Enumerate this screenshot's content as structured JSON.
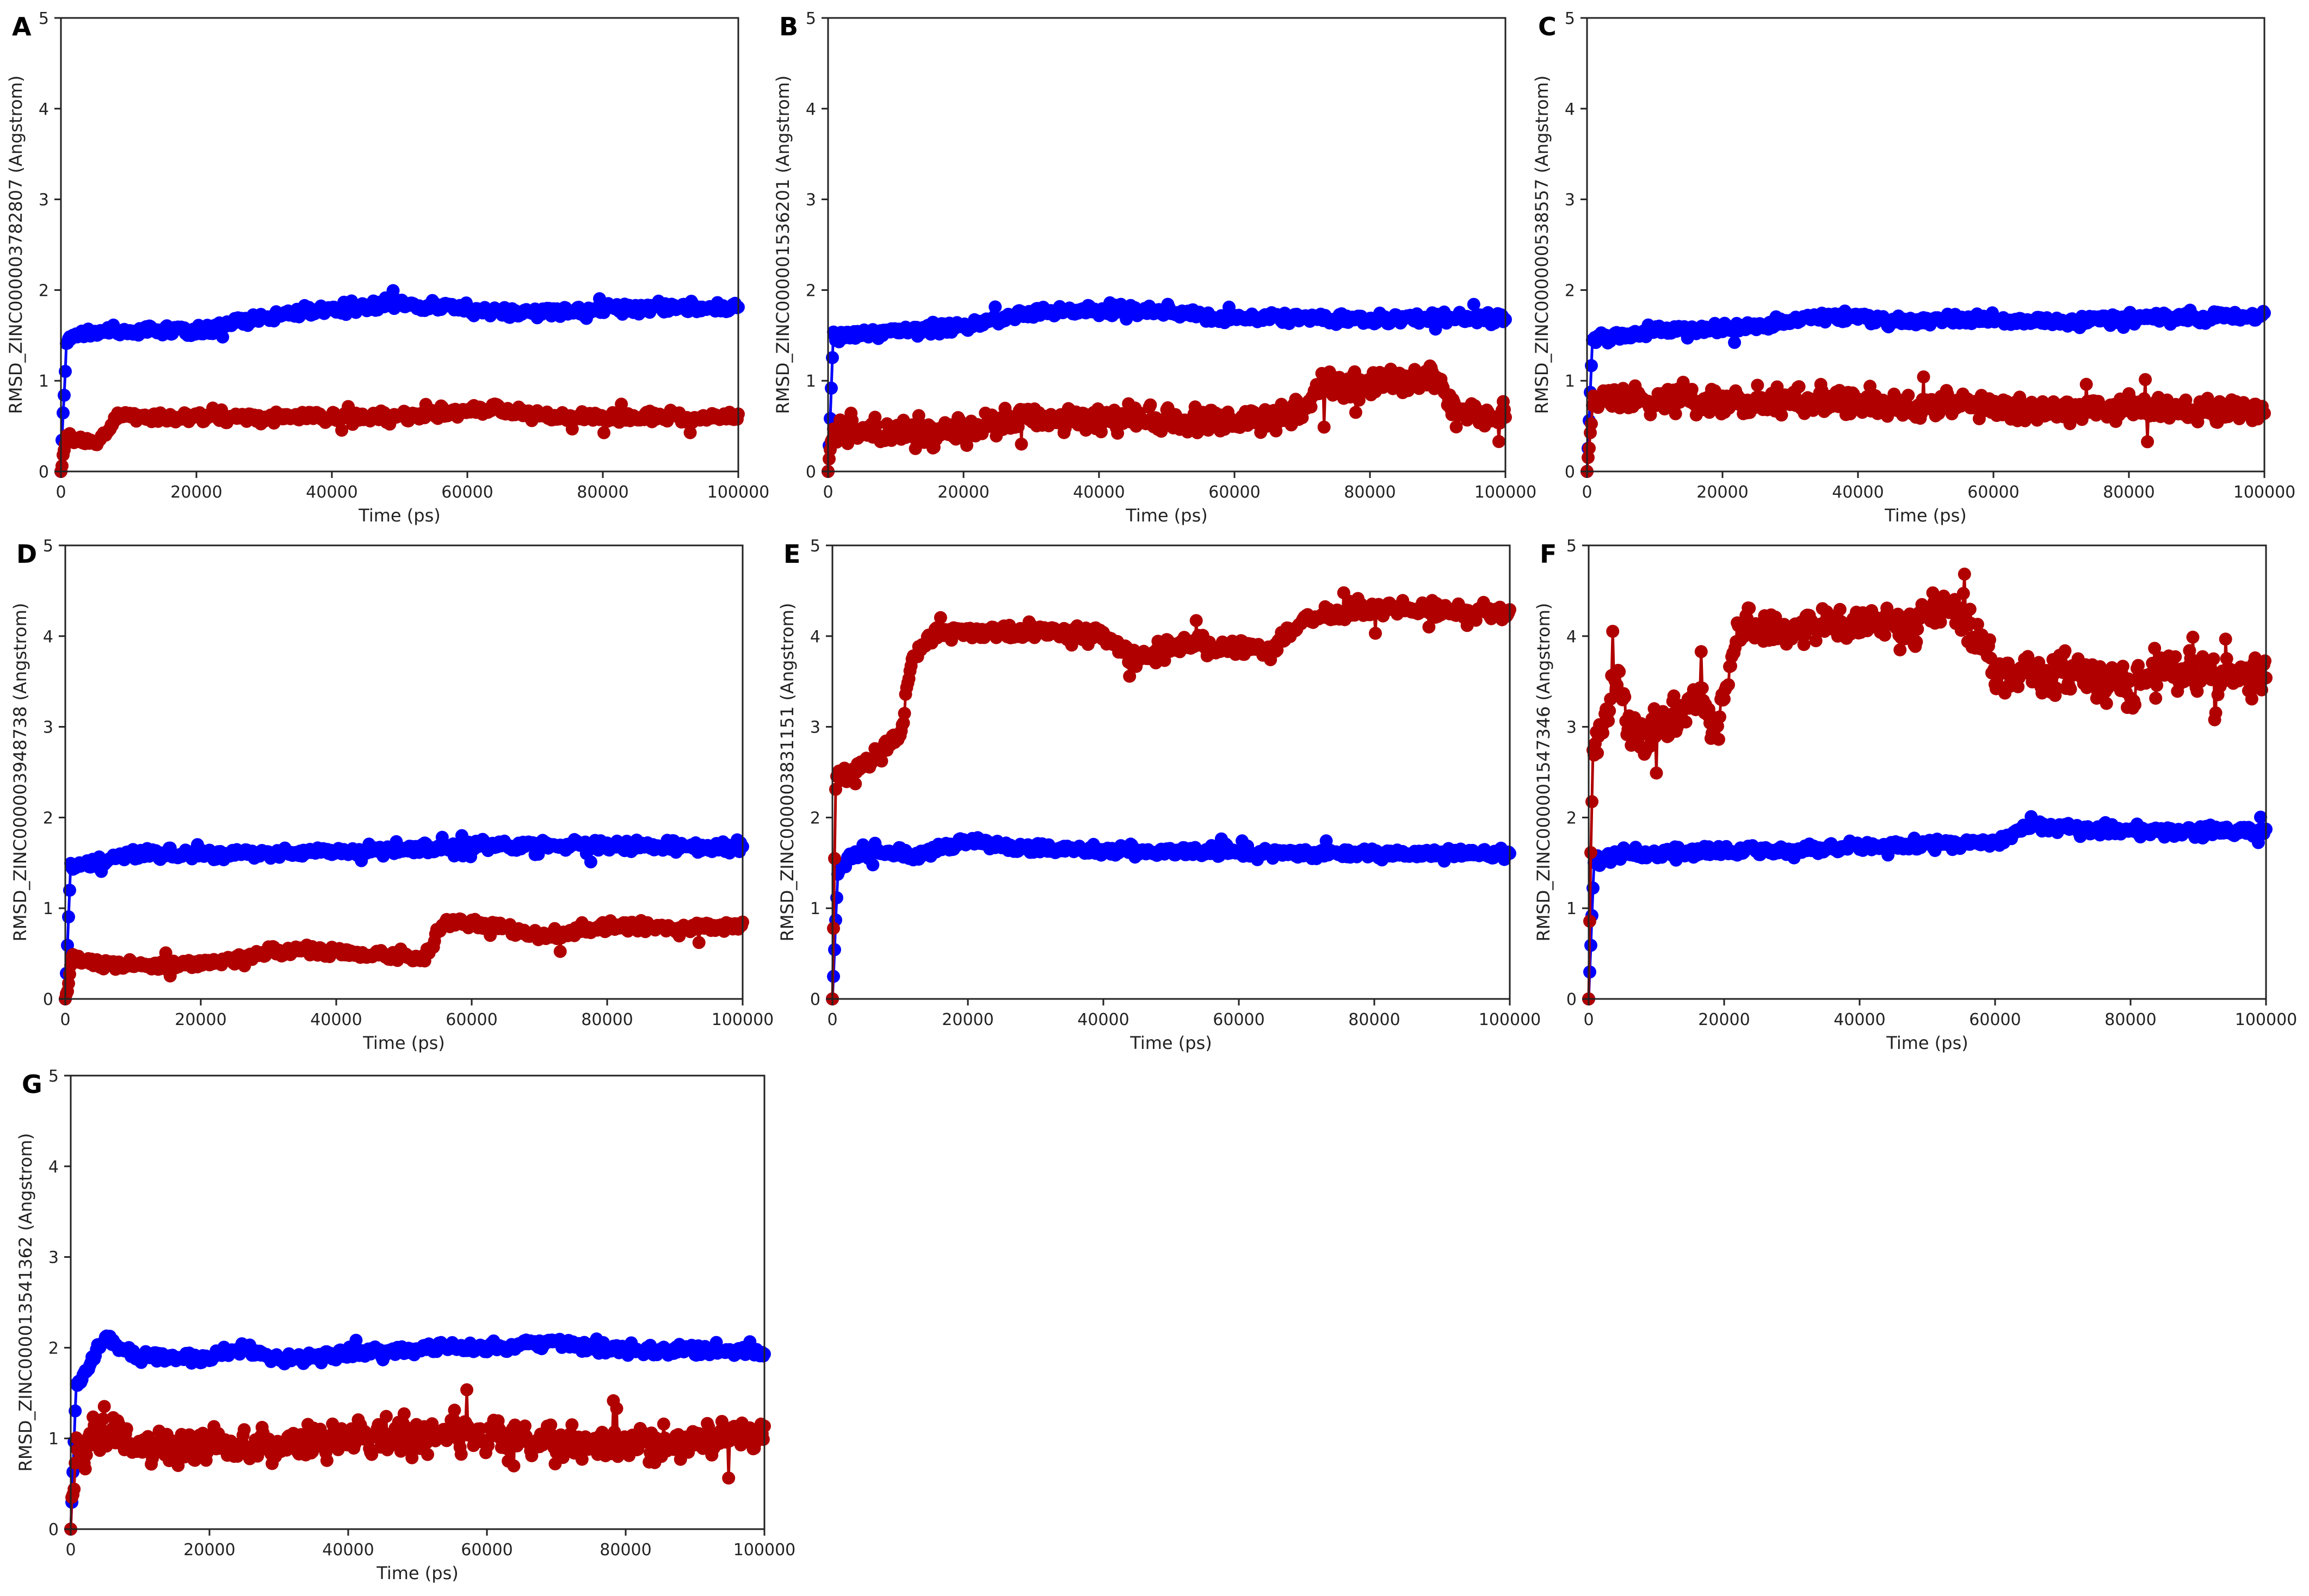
{
  "colors": {
    "blue_series": "#0000ff",
    "red_series": "#b00000",
    "axis": "#222222"
  },
  "chart_data": [
    {
      "type": "line",
      "panel": "A",
      "xlabel": "Time (ps)",
      "ylabel": "RMSD_ZINC000003782807 (Angstrom)",
      "xlim": [
        0,
        100000
      ],
      "ylim": [
        0,
        5
      ],
      "xticks": [
        "0",
        "20000",
        "40000",
        "60000",
        "80000",
        "100000"
      ],
      "yticks": [
        "0",
        "1",
        "2",
        "3",
        "4",
        "5"
      ],
      "series": [
        {
          "color": "#0000ff",
          "noise": 0.05,
          "points": [
            [
              0,
              0
            ],
            [
              800,
              1.45
            ],
            [
              5000,
              1.55
            ],
            [
              20000,
              1.55
            ],
            [
              30000,
              1.7
            ],
            [
              40000,
              1.78
            ],
            [
              50000,
              1.85
            ],
            [
              60000,
              1.8
            ],
            [
              70000,
              1.75
            ],
            [
              80000,
              1.78
            ],
            [
              90000,
              1.82
            ],
            [
              100000,
              1.8
            ]
          ]
        },
        {
          "color": "#b00000",
          "noise": 0.05,
          "points": [
            [
              0,
              0
            ],
            [
              800,
              0.35
            ],
            [
              6000,
              0.35
            ],
            [
              8000,
              0.6
            ],
            [
              30000,
              0.6
            ],
            [
              50000,
              0.6
            ],
            [
              64000,
              0.7
            ],
            [
              70000,
              0.6
            ],
            [
              100000,
              0.6
            ]
          ]
        }
      ]
    },
    {
      "type": "line",
      "panel": "B",
      "xlabel": "Time (ps)",
      "ylabel": "RMSD_ZINC000001536201 (Angstrom)",
      "xlim": [
        0,
        100000
      ],
      "ylim": [
        0,
        5
      ],
      "xticks": [
        "0",
        "20000",
        "40000",
        "60000",
        "80000",
        "100000"
      ],
      "yticks": [
        "0",
        "1",
        "2",
        "3",
        "4",
        "5"
      ],
      "series": [
        {
          "color": "#0000ff",
          "noise": 0.05,
          "points": [
            [
              0,
              0
            ],
            [
              800,
              1.5
            ],
            [
              10000,
              1.55
            ],
            [
              20000,
              1.6
            ],
            [
              30000,
              1.75
            ],
            [
              45000,
              1.78
            ],
            [
              60000,
              1.7
            ],
            [
              80000,
              1.68
            ],
            [
              100000,
              1.7
            ]
          ]
        },
        {
          "color": "#b00000",
          "noise": 0.13,
          "points": [
            [
              0,
              0
            ],
            [
              800,
              0.45
            ],
            [
              20000,
              0.45
            ],
            [
              30000,
              0.6
            ],
            [
              50000,
              0.55
            ],
            [
              65000,
              0.55
            ],
            [
              70000,
              0.6
            ],
            [
              72000,
              0.9
            ],
            [
              85000,
              1.0
            ],
            [
              90000,
              1.0
            ],
            [
              92000,
              0.65
            ],
            [
              100000,
              0.6
            ]
          ]
        }
      ]
    },
    {
      "type": "line",
      "panel": "C",
      "xlabel": "Time (ps)",
      "ylabel": "RMSD_ZINC000000538557 (Angstrom)",
      "xlim": [
        0,
        100000
      ],
      "ylim": [
        0,
        5
      ],
      "xticks": [
        "0",
        "20000",
        "40000",
        "60000",
        "80000",
        "100000"
      ],
      "yticks": [
        "0",
        "1",
        "2",
        "3",
        "4",
        "5"
      ],
      "series": [
        {
          "color": "#0000ff",
          "noise": 0.05,
          "points": [
            [
              0,
              0
            ],
            [
              800,
              1.45
            ],
            [
              10000,
              1.55
            ],
            [
              25000,
              1.6
            ],
            [
              35000,
              1.7
            ],
            [
              50000,
              1.68
            ],
            [
              70000,
              1.65
            ],
            [
              85000,
              1.7
            ],
            [
              100000,
              1.7
            ]
          ]
        },
        {
          "color": "#b00000",
          "noise": 0.12,
          "points": [
            [
              0,
              0
            ],
            [
              800,
              0.8
            ],
            [
              20000,
              0.8
            ],
            [
              25000,
              0.75
            ],
            [
              40000,
              0.8
            ],
            [
              50000,
              0.7
            ],
            [
              55000,
              0.75
            ],
            [
              65000,
              0.65
            ],
            [
              80000,
              0.7
            ],
            [
              100000,
              0.65
            ]
          ]
        }
      ]
    },
    {
      "type": "line",
      "panel": "D",
      "xlabel": "Time (ps)",
      "ylabel": "RMSD_ZINC000003948738 (Angstrom)",
      "xlim": [
        0,
        100000
      ],
      "ylim": [
        0,
        5
      ],
      "xticks": [
        "0",
        "20000",
        "40000",
        "60000",
        "80000",
        "100000"
      ],
      "yticks": [
        "0",
        "1",
        "2",
        "3",
        "4",
        "5"
      ],
      "series": [
        {
          "color": "#0000ff",
          "noise": 0.05,
          "points": [
            [
              0,
              0
            ],
            [
              800,
              1.45
            ],
            [
              10000,
              1.6
            ],
            [
              30000,
              1.6
            ],
            [
              50000,
              1.65
            ],
            [
              60000,
              1.7
            ],
            [
              80000,
              1.7
            ],
            [
              100000,
              1.65
            ]
          ]
        },
        {
          "color": "#b00000",
          "noise": 0.05,
          "points": [
            [
              0,
              0
            ],
            [
              1000,
              0.5
            ],
            [
              4000,
              0.4
            ],
            [
              15000,
              0.35
            ],
            [
              25000,
              0.45
            ],
            [
              35000,
              0.55
            ],
            [
              45000,
              0.5
            ],
            [
              53000,
              0.45
            ],
            [
              56000,
              0.85
            ],
            [
              65000,
              0.8
            ],
            [
              70000,
              0.7
            ],
            [
              80000,
              0.8
            ],
            [
              90000,
              0.8
            ],
            [
              100000,
              0.8
            ]
          ]
        }
      ]
    },
    {
      "type": "line",
      "panel": "E",
      "xlabel": "Time (ps)",
      "ylabel": "RMSD_ZINC000003831151 (Angstrom)",
      "xlim": [
        0,
        100000
      ],
      "ylim": [
        0,
        5
      ],
      "xticks": [
        "0",
        "20000",
        "40000",
        "60000",
        "80000",
        "100000"
      ],
      "yticks": [
        "0",
        "1",
        "2",
        "3",
        "4",
        "5"
      ],
      "series": [
        {
          "color": "#0000ff",
          "noise": 0.05,
          "points": [
            [
              0,
              0
            ],
            [
              800,
              1.45
            ],
            [
              5000,
              1.65
            ],
            [
              12000,
              1.55
            ],
            [
              19000,
              1.75
            ],
            [
              30000,
              1.65
            ],
            [
              50000,
              1.62
            ],
            [
              70000,
              1.6
            ],
            [
              100000,
              1.6
            ]
          ]
        },
        {
          "color": "#b00000",
          "noise": 0.08,
          "points": [
            [
              0,
              0
            ],
            [
              500,
              2.4
            ],
            [
              5000,
              2.6
            ],
            [
              10000,
              2.9
            ],
            [
              12000,
              3.8
            ],
            [
              16000,
              4.05
            ],
            [
              30000,
              4.05
            ],
            [
              40000,
              4.0
            ],
            [
              45000,
              3.75
            ],
            [
              50000,
              3.9
            ],
            [
              65000,
              3.85
            ],
            [
              70000,
              4.2
            ],
            [
              80000,
              4.3
            ],
            [
              100000,
              4.25
            ]
          ]
        }
      ]
    },
    {
      "type": "line",
      "panel": "F",
      "xlabel": "Time (ps)",
      "ylabel": "RMSD_ZINC000001547346 (Angstrom)",
      "xlim": [
        0,
        100000
      ],
      "ylim": [
        0,
        5
      ],
      "xticks": [
        "0",
        "20000",
        "40000",
        "60000",
        "80000",
        "100000"
      ],
      "yticks": [
        "0",
        "1",
        "2",
        "3",
        "4",
        "5"
      ],
      "series": [
        {
          "color": "#0000ff",
          "noise": 0.05,
          "points": [
            [
              0,
              0
            ],
            [
              800,
              1.5
            ],
            [
              5000,
              1.6
            ],
            [
              30000,
              1.65
            ],
            [
              50000,
              1.7
            ],
            [
              60000,
              1.72
            ],
            [
              65000,
              1.9
            ],
            [
              80000,
              1.85
            ],
            [
              100000,
              1.85
            ]
          ]
        },
        {
          "color": "#b00000",
          "noise": 0.18,
          "points": [
            [
              0,
              0
            ],
            [
              600,
              2.8
            ],
            [
              4000,
              3.5
            ],
            [
              7000,
              2.9
            ],
            [
              12000,
              3.0
            ],
            [
              16000,
              3.3
            ],
            [
              19000,
              3.0
            ],
            [
              22000,
              4.1
            ],
            [
              40000,
              4.15
            ],
            [
              48000,
              4.1
            ],
            [
              53000,
              4.4
            ],
            [
              58000,
              4.0
            ],
            [
              60000,
              3.6
            ],
            [
              70000,
              3.6
            ],
            [
              80000,
              3.45
            ],
            [
              85000,
              3.55
            ],
            [
              100000,
              3.6
            ]
          ]
        }
      ]
    },
    {
      "type": "line",
      "panel": "G",
      "xlabel": "Time (ps)",
      "ylabel": "RMSD_ZINC000013541362 (Angstrom)",
      "xlim": [
        0,
        100000
      ],
      "ylim": [
        0,
        5
      ],
      "xticks": [
        "0",
        "20000",
        "40000",
        "60000",
        "80000",
        "100000"
      ],
      "yticks": [
        "0",
        "1",
        "2",
        "3",
        "4",
        "5"
      ],
      "series": [
        {
          "color": "#0000ff",
          "noise": 0.05,
          "points": [
            [
              0,
              0
            ],
            [
              800,
              1.6
            ],
            [
              5000,
              2.1
            ],
            [
              10000,
              1.9
            ],
            [
              20000,
              1.9
            ],
            [
              25000,
              2.0
            ],
            [
              30000,
              1.88
            ],
            [
              50000,
              1.98
            ],
            [
              60000,
              2.0
            ],
            [
              70000,
              2.05
            ],
            [
              80000,
              1.98
            ],
            [
              100000,
              1.95
            ]
          ]
        },
        {
          "color": "#b00000",
          "noise": 0.16,
          "points": [
            [
              0,
              0
            ],
            [
              800,
              0.85
            ],
            [
              5000,
              1.1
            ],
            [
              10000,
              0.9
            ],
            [
              20000,
              0.9
            ],
            [
              40000,
              1.0
            ],
            [
              55000,
              1.05
            ],
            [
              70000,
              0.95
            ],
            [
              90000,
              0.95
            ],
            [
              100000,
              1.0
            ]
          ]
        }
      ]
    }
  ]
}
